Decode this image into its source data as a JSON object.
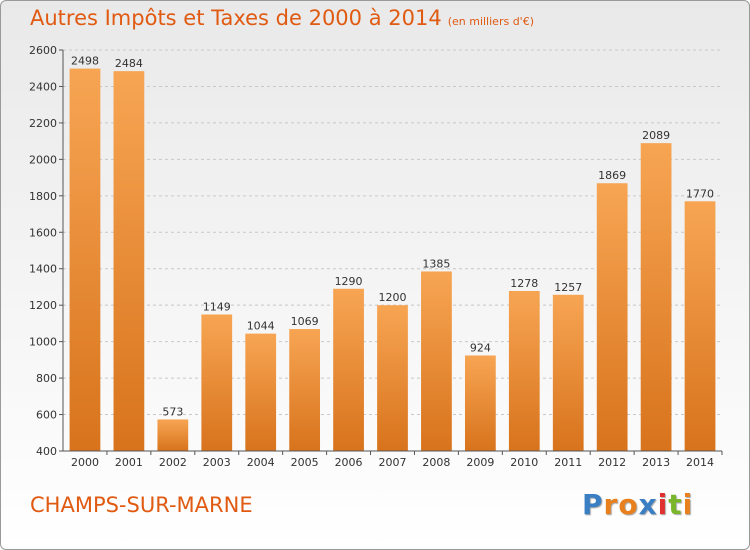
{
  "page": {
    "title": "Autres Impôts et Taxes de 2000 à 2014",
    "unit": "(en milliers d'€)",
    "city": "CHAMPS-SUR-MARNE",
    "logo": [
      "P",
      "r",
      "o",
      "x",
      "i",
      "t",
      "i"
    ],
    "logo_colors": [
      "#3a7fc4",
      "#e8801d",
      "#e8801d",
      "#3a7fc4",
      "#e03030",
      "#7ab629",
      "#e8801d"
    ]
  },
  "chart_data": {
    "type": "bar",
    "title": "Autres Impôts et Taxes de 2000 à 2014",
    "ylabel": "",
    "xlabel": "",
    "categories": [
      "2000",
      "2001",
      "2002",
      "2003",
      "2004",
      "2005",
      "2006",
      "2007",
      "2008",
      "2009",
      "2010",
      "2011",
      "2012",
      "2013",
      "2014"
    ],
    "values": [
      2498,
      2484,
      573,
      1149,
      1044,
      1069,
      1290,
      1200,
      1385,
      924,
      1278,
      1257,
      1869,
      2089,
      1770
    ],
    "ylim": [
      400,
      2600
    ],
    "yticks": [
      400,
      600,
      800,
      1000,
      1200,
      1400,
      1600,
      1800,
      2000,
      2200,
      2400,
      2600
    ],
    "grid": "horizontal",
    "bar_color_light": "#f7a553",
    "bar_color_dark": "#d8731c"
  }
}
